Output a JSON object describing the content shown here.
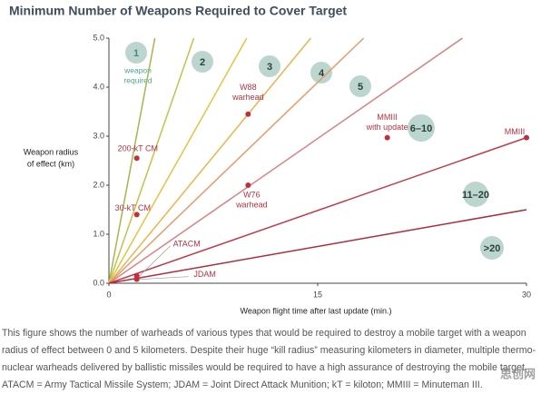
{
  "chart_data": {
    "type": "line",
    "title": "Minimum Number of Weapons Required to Cover Target",
    "x_label": "Weapon flight time after last update (min.)",
    "y_label": [
      "Weapon radius",
      "of effect (km)"
    ],
    "xlim": [
      0,
      30
    ],
    "xticks": [
      0,
      15,
      30
    ],
    "ylim": [
      0,
      5
    ],
    "yticks": [
      {
        "value": 0,
        "label": "0.0"
      },
      {
        "value": 1,
        "label": "1.0"
      },
      {
        "value": 2,
        "label": "2.0"
      },
      {
        "value": 3,
        "label": "3.0"
      },
      {
        "value": 4,
        "label": "4.0"
      },
      {
        "value": 5,
        "label": "5.0"
      }
    ],
    "series": [
      {
        "color": "#a3b74e",
        "x": [
          0,
          3.3
        ],
        "values": [
          0,
          5
        ]
      },
      {
        "color": "#c4c24a",
        "x": [
          0,
          6.1
        ],
        "values": [
          0,
          5
        ]
      },
      {
        "color": "#e2c443",
        "x": [
          0,
          9.9
        ],
        "values": [
          0,
          5
        ]
      },
      {
        "color": "#e9b44c",
        "x": [
          0,
          14.5
        ],
        "values": [
          0,
          5
        ]
      },
      {
        "color": "#e59b6e",
        "x": [
          0,
          18.3
        ],
        "values": [
          0,
          5
        ]
      },
      {
        "color": "#d98080",
        "x": [
          0,
          25.4
        ],
        "values": [
          0,
          5
        ]
      },
      {
        "color": "#c23a4a",
        "x": [
          0,
          30
        ],
        "values": [
          0,
          2.97
        ]
      },
      {
        "color": "#ad2c3c",
        "x": [
          0,
          30
        ],
        "values": [
          0,
          1.5
        ]
      }
    ],
    "points": [
      {
        "label": [
          "200-kT CM"
        ],
        "x": 2,
        "y": 2.55
      },
      {
        "label": [
          "30-kT CM"
        ],
        "x": 2,
        "y": 1.4
      },
      {
        "label": [
          "W88",
          "warhead"
        ],
        "x": 10,
        "y": 3.45
      },
      {
        "label": [
          "MMIII",
          "with update"
        ],
        "x": 20,
        "y": 2.97
      },
      {
        "label": [
          "MMIII"
        ],
        "x": 30,
        "y": 2.97
      },
      {
        "label": [
          "W76",
          "warhead"
        ],
        "x": 10,
        "y": 2.0
      },
      {
        "label": [
          "ATACM"
        ],
        "x": 2,
        "y": 0.15
      },
      {
        "label": [
          "JDAM"
        ],
        "x": 2,
        "y": 0.08
      }
    ],
    "regions": [
      "1",
      "2",
      "3",
      "4",
      "5",
      "6–10",
      "11–20",
      ">20"
    ],
    "region_note": [
      "weapon",
      "required"
    ]
  },
  "caption": [
    "This figure shows the number of warheads of various types that would be required to destroy a mobile target with a weapon",
    "radius of effect between 0 and 5 kilometers. Despite their huge “kill radius” measuring kilometers in diameter, multiple thermo-",
    "nuclear warheads delivered by ballistic missiles would be required to have a high assurance of destroying the mobile target.",
    "ATACM = Army Tactical Missile System; JDAM = Joint Direct Attack Munition; kT = kiloton; MMIII = Minuteman III."
  ],
  "watermark": "思创网"
}
